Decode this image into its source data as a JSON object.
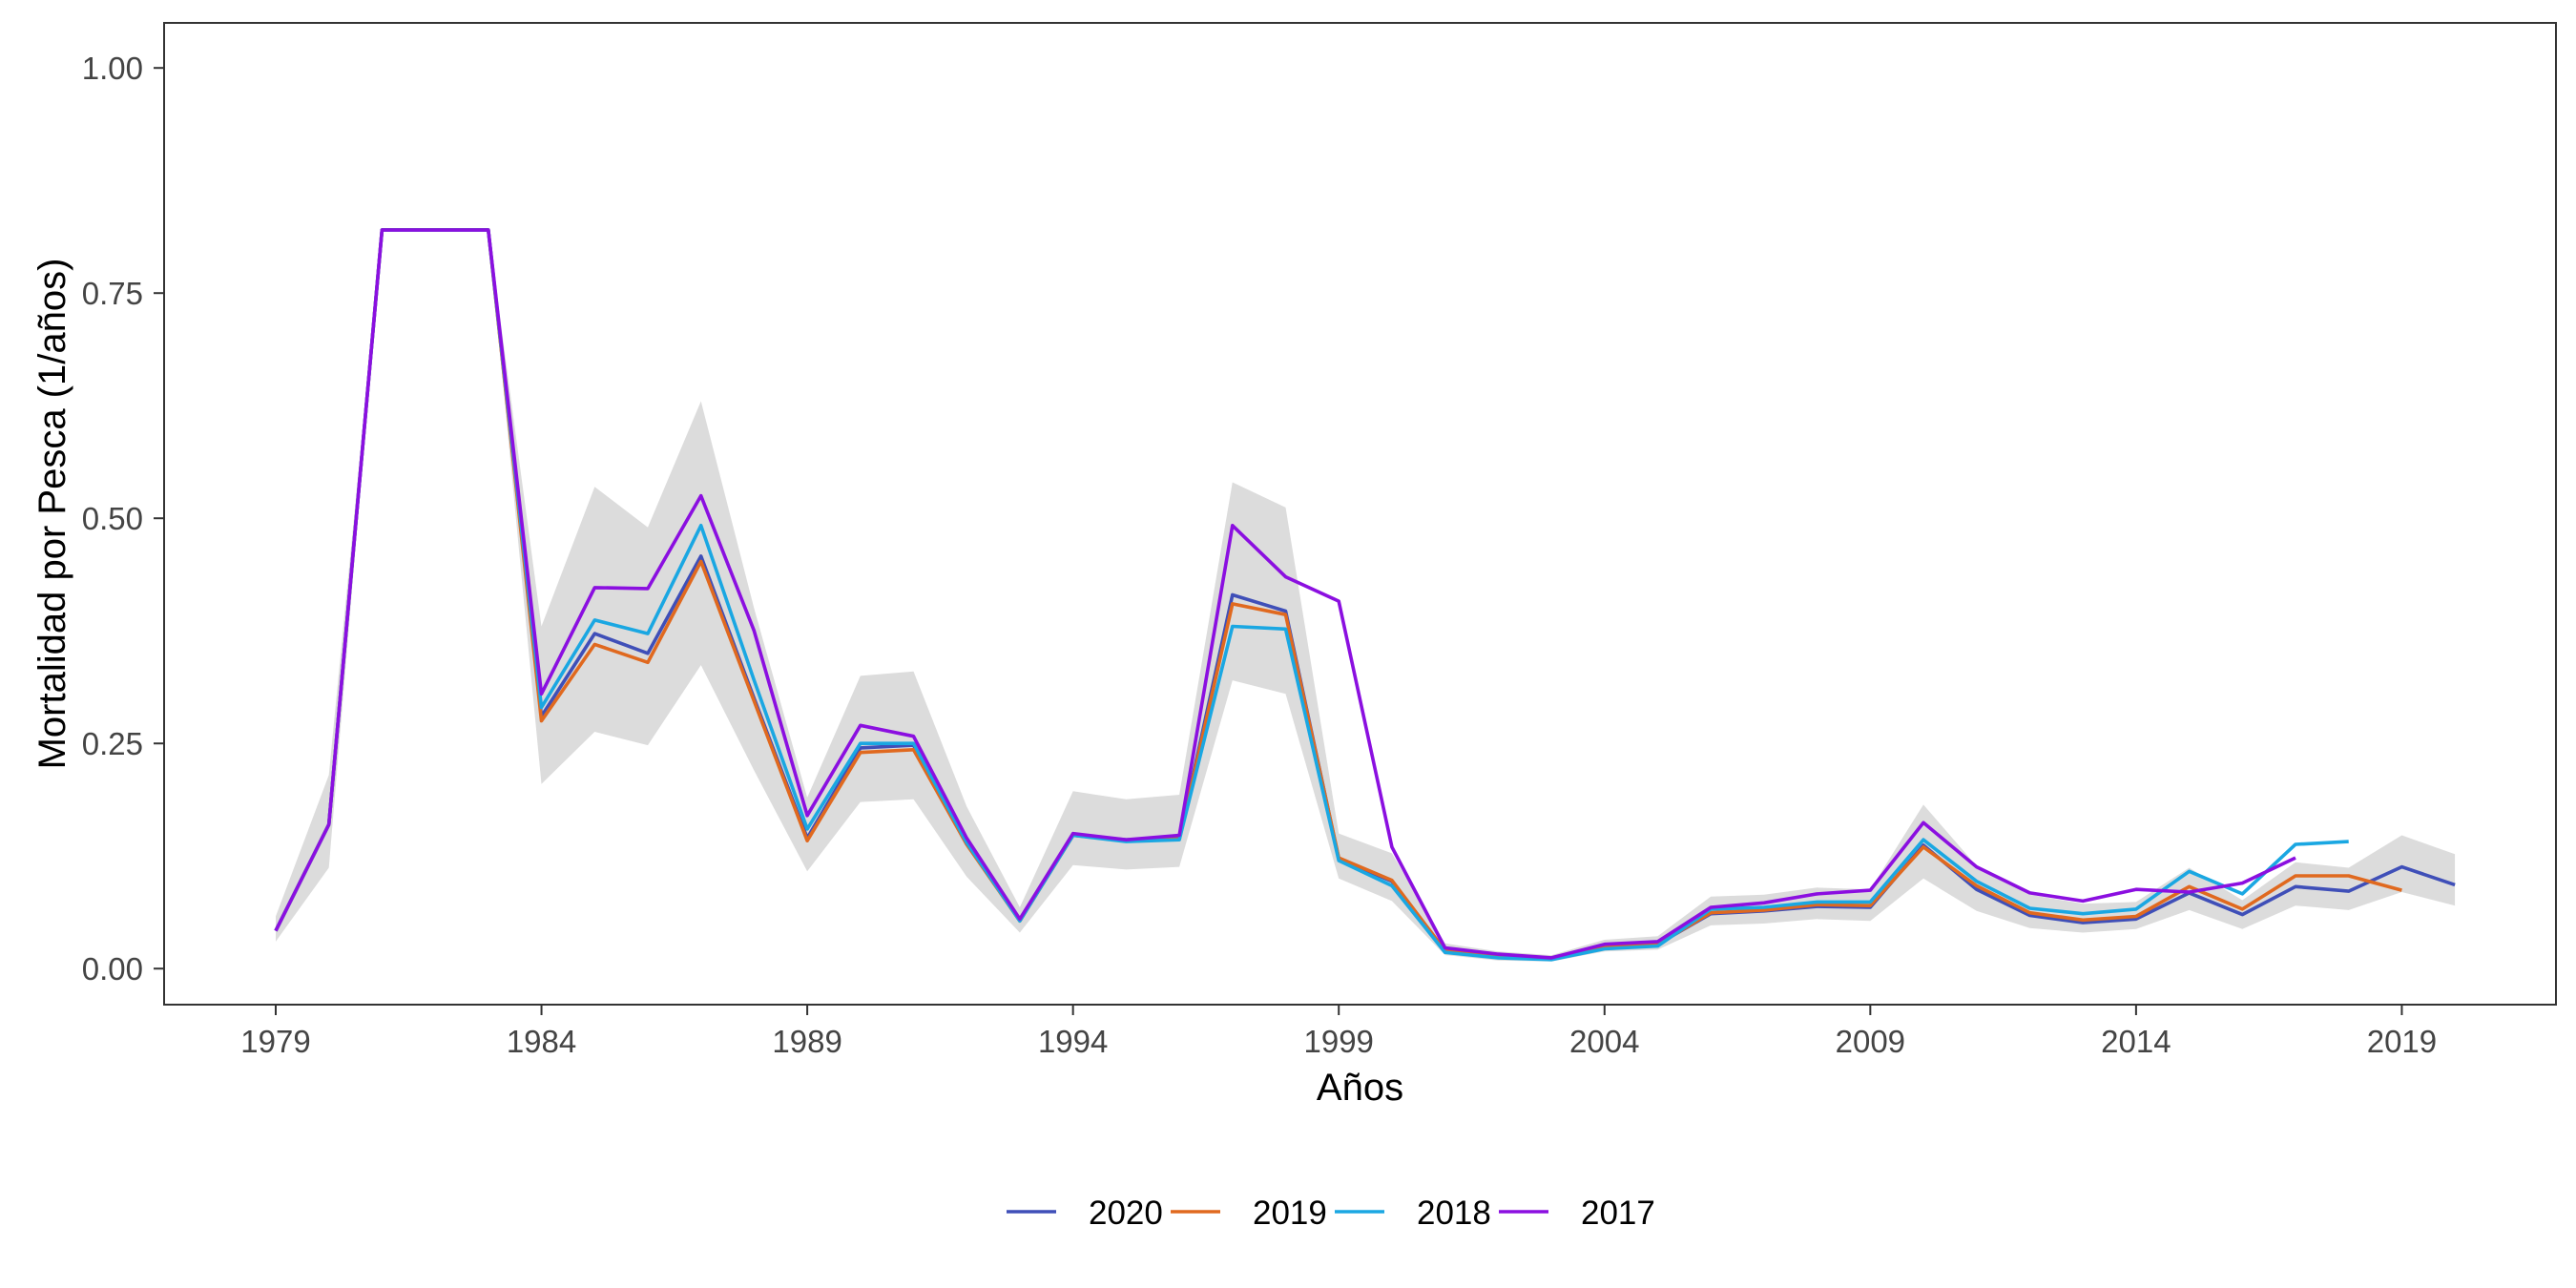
{
  "chart_data": {
    "type": "line",
    "title": "",
    "xlabel": "Años",
    "ylabel": "Mortalidad por Pesca (1/años)",
    "xlim": [
      1976.9,
      2021.9
    ],
    "ylim": [
      -0.04,
      1.05
    ],
    "x_ticks": [
      1979,
      1984,
      1989,
      1994,
      1999,
      2004,
      2009,
      2014,
      2019
    ],
    "x_tick_labels": [
      "1979",
      "1984",
      "1989",
      "1994",
      "1999",
      "2004",
      "2009",
      "2014",
      "2019"
    ],
    "y_ticks": [
      0,
      0.25,
      0.5,
      0.75,
      1.0
    ],
    "y_tick_labels": [
      "0.00",
      "0.25",
      "0.50",
      "0.75",
      "1.00"
    ],
    "grid": false,
    "legend_position": "bottom",
    "band": {
      "fill": "#dcdcdc",
      "x": [
        1979,
        1980,
        1981,
        1982,
        1983,
        1984,
        1985,
        1986,
        1987,
        1988,
        1989,
        1990,
        1991,
        1992,
        1993,
        1994,
        1995,
        1996,
        1997,
        1998,
        1999,
        2000,
        2001,
        2002,
        2003,
        2004,
        2005,
        2006,
        2007,
        2008,
        2009,
        2010,
        2011,
        2012,
        2013,
        2014,
        2015,
        2016,
        2017,
        2018,
        2019,
        2020
      ],
      "lower": [
        0.03,
        0.112,
        0.82,
        0.82,
        0.82,
        0.205,
        0.263,
        0.248,
        0.337,
        0.22,
        0.108,
        0.185,
        0.188,
        0.102,
        0.04,
        0.115,
        0.11,
        0.113,
        0.32,
        0.305,
        0.1,
        0.075,
        0.015,
        0.009,
        0.008,
        0.019,
        0.021,
        0.048,
        0.05,
        0.055,
        0.053,
        0.1,
        0.064,
        0.045,
        0.04,
        0.044,
        0.065,
        0.044,
        0.07,
        0.065,
        0.085,
        0.07
      ],
      "upper": [
        0.058,
        0.215,
        0.82,
        0.82,
        0.82,
        0.38,
        0.535,
        0.49,
        0.63,
        0.4,
        0.19,
        0.325,
        0.33,
        0.18,
        0.068,
        0.197,
        0.188,
        0.193,
        0.54,
        0.512,
        0.15,
        0.128,
        0.028,
        0.019,
        0.015,
        0.032,
        0.036,
        0.08,
        0.082,
        0.09,
        0.088,
        0.182,
        0.114,
        0.082,
        0.072,
        0.074,
        0.112,
        0.076,
        0.118,
        0.112,
        0.148,
        0.127
      ]
    },
    "series": [
      {
        "name": "2020",
        "color": "#3F4FB8",
        "x": [
          1979,
          1980,
          1981,
          1982,
          1983,
          1984,
          1985,
          1986,
          1987,
          1988,
          1989,
          1990,
          1991,
          1992,
          1993,
          1994,
          1995,
          1996,
          1997,
          1998,
          1999,
          2000,
          2001,
          2002,
          2003,
          2004,
          2005,
          2006,
          2007,
          2008,
          2009,
          2010,
          2011,
          2012,
          2013,
          2014,
          2015,
          2016,
          2017,
          2018,
          2019,
          2020
        ],
        "values": [
          0.042,
          0.16,
          0.82,
          0.82,
          0.82,
          0.28,
          0.372,
          0.35,
          0.458,
          0.3,
          0.145,
          0.245,
          0.248,
          0.14,
          0.053,
          0.148,
          0.143,
          0.145,
          0.415,
          0.397,
          0.122,
          0.097,
          0.02,
          0.013,
          0.011,
          0.024,
          0.027,
          0.061,
          0.064,
          0.069,
          0.068,
          0.137,
          0.088,
          0.059,
          0.051,
          0.055,
          0.084,
          0.06,
          0.091,
          0.086,
          0.113,
          0.093
        ]
      },
      {
        "name": "2019",
        "color": "#E0691F",
        "x": [
          1979,
          1980,
          1981,
          1982,
          1983,
          1984,
          1985,
          1986,
          1987,
          1988,
          1989,
          1990,
          1991,
          1992,
          1993,
          1994,
          1995,
          1996,
          1997,
          1998,
          1999,
          2000,
          2001,
          2002,
          2003,
          2004,
          2005,
          2006,
          2007,
          2008,
          2009,
          2010,
          2011,
          2012,
          2013,
          2014,
          2015,
          2016,
          2017,
          2018,
          2019
        ],
        "values": [
          0.042,
          0.16,
          0.82,
          0.82,
          0.82,
          0.275,
          0.36,
          0.34,
          0.452,
          0.297,
          0.142,
          0.24,
          0.243,
          0.138,
          0.053,
          0.148,
          0.142,
          0.144,
          0.405,
          0.393,
          0.123,
          0.098,
          0.02,
          0.013,
          0.011,
          0.024,
          0.027,
          0.062,
          0.065,
          0.071,
          0.07,
          0.135,
          0.092,
          0.062,
          0.054,
          0.058,
          0.091,
          0.066,
          0.103,
          0.103,
          0.087
        ]
      },
      {
        "name": "2018",
        "color": "#1AA7E2",
        "x": [
          1979,
          1980,
          1981,
          1982,
          1983,
          1984,
          1985,
          1986,
          1987,
          1988,
          1989,
          1990,
          1991,
          1992,
          1993,
          1994,
          1995,
          1996,
          1997,
          1998,
          1999,
          2000,
          2001,
          2002,
          2003,
          2004,
          2005,
          2006,
          2007,
          2008,
          2009,
          2010,
          2011,
          2012,
          2013,
          2014,
          2015,
          2016,
          2017,
          2018
        ],
        "values": [
          0.042,
          0.16,
          0.82,
          0.82,
          0.82,
          0.29,
          0.387,
          0.372,
          0.492,
          0.32,
          0.155,
          0.25,
          0.25,
          0.14,
          0.053,
          0.148,
          0.141,
          0.143,
          0.38,
          0.377,
          0.12,
          0.092,
          0.018,
          0.012,
          0.01,
          0.022,
          0.025,
          0.066,
          0.068,
          0.074,
          0.074,
          0.143,
          0.097,
          0.067,
          0.061,
          0.066,
          0.108,
          0.083,
          0.138,
          0.141
        ]
      },
      {
        "name": "2017",
        "color": "#8B0FE0",
        "x": [
          1979,
          1980,
          1981,
          1982,
          1983,
          1984,
          1985,
          1986,
          1987,
          1988,
          1989,
          1990,
          1991,
          1992,
          1993,
          1994,
          1995,
          1996,
          1997,
          1998,
          1999,
          2000,
          2001,
          2002,
          2003,
          2004,
          2005,
          2006,
          2007,
          2008,
          2009,
          2010,
          2011,
          2012,
          2013,
          2014,
          2015,
          2016,
          2017
        ],
        "values": [
          0.042,
          0.16,
          0.82,
          0.82,
          0.82,
          0.305,
          0.423,
          0.422,
          0.525,
          0.375,
          0.17,
          0.27,
          0.258,
          0.145,
          0.055,
          0.15,
          0.143,
          0.148,
          0.492,
          0.435,
          0.408,
          0.135,
          0.023,
          0.016,
          0.012,
          0.027,
          0.03,
          0.068,
          0.073,
          0.083,
          0.087,
          0.162,
          0.113,
          0.084,
          0.075,
          0.088,
          0.085,
          0.095,
          0.123
        ]
      }
    ]
  }
}
